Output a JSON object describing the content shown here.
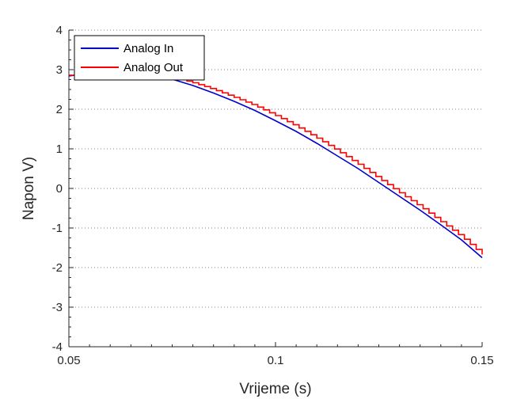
{
  "chart_data": {
    "type": "line",
    "title": "",
    "xlabel": "Vrijeme (s)",
    "ylabel": "Napon V)",
    "xlim": [
      0.05,
      0.15
    ],
    "ylim": [
      -4,
      4
    ],
    "xticks": [
      0.05,
      0.1,
      0.15
    ],
    "xtick_labels": [
      "0.05",
      "0.1",
      "0.15"
    ],
    "yticks": [
      -4,
      -3,
      -2,
      -1,
      0,
      1,
      2,
      3,
      4
    ],
    "ytick_labels": [
      "-4",
      "-3",
      "-2",
      "-1",
      "0",
      "1",
      "2",
      "3",
      "4"
    ],
    "grid": "horizontal-dotted",
    "legend_position": "top-left",
    "series": [
      {
        "name": "Analog In",
        "color": "#0000cc",
        "style": "smooth",
        "x": [
          0.05,
          0.055,
          0.06,
          0.065,
          0.07,
          0.075,
          0.08,
          0.085,
          0.09,
          0.095,
          0.1,
          0.105,
          0.11,
          0.115,
          0.12,
          0.125,
          0.13,
          0.135,
          0.14,
          0.145,
          0.15
        ],
        "y": [
          2.84,
          2.91,
          2.96,
          2.95,
          2.88,
          2.76,
          2.6,
          2.41,
          2.2,
          1.97,
          1.71,
          1.44,
          1.14,
          0.82,
          0.5,
          0.15,
          -0.2,
          -0.55,
          -0.92,
          -1.3,
          -1.75
        ]
      },
      {
        "name": "Analog Out",
        "color": "#ff0000",
        "style": "step",
        "x": [
          0.05,
          0.055,
          0.06,
          0.065,
          0.07,
          0.075,
          0.08,
          0.085,
          0.09,
          0.095,
          0.1,
          0.105,
          0.11,
          0.115,
          0.12,
          0.125,
          0.13,
          0.135,
          0.14,
          0.145,
          0.15
        ],
        "y": [
          2.86,
          2.94,
          3.0,
          2.99,
          2.92,
          2.81,
          2.67,
          2.5,
          2.3,
          2.09,
          1.84,
          1.57,
          1.27,
          0.95,
          0.61,
          0.25,
          -0.11,
          -0.46,
          -0.84,
          -1.22,
          -1.67
        ]
      }
    ]
  }
}
